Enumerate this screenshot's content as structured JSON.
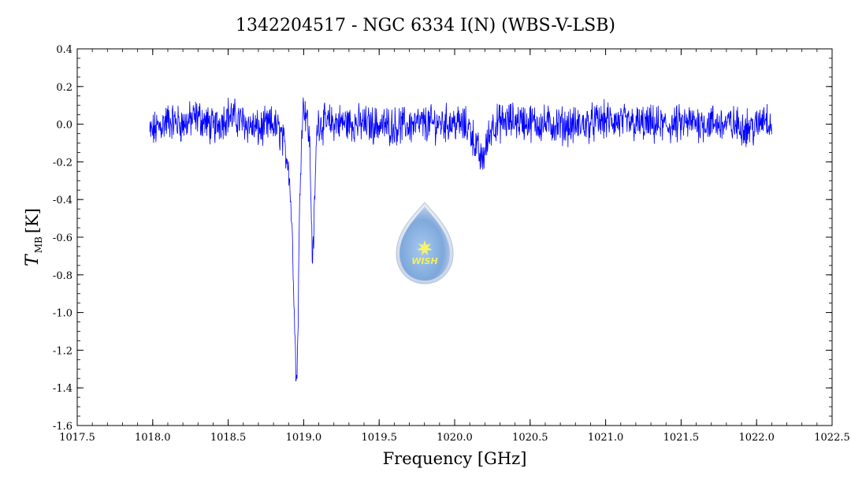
{
  "chart_data": {
    "type": "line",
    "title": "1342204517 - NGC 6334 I(N) (WBS-V-LSB)",
    "xlabel": "Frequency [GHz]",
    "ylabel": {
      "symbol": "T",
      "subscript": "MB",
      "unit": "[K]"
    },
    "xlim": [
      1017.5,
      1022.5
    ],
    "ylim": [
      -1.6,
      0.4
    ],
    "x_ticks": [
      "1017.5",
      "1018.0",
      "1018.5",
      "1019.0",
      "1019.5",
      "1020.0",
      "1020.5",
      "1021.0",
      "1021.5",
      "1022.0",
      "1022.5"
    ],
    "y_ticks": [
      "0.4",
      "0.2",
      "0.0",
      "-0.2",
      "-0.4",
      "-0.6",
      "-0.8",
      "-1.0",
      "-1.2",
      "-1.4",
      "-1.6"
    ],
    "grid": false,
    "series": [
      {
        "color": "#0000ff",
        "x": [
          1017.98,
          1018.1,
          1018.2,
          1018.3,
          1018.4,
          1018.5,
          1018.6,
          1018.7,
          1018.8,
          1018.85,
          1018.88,
          1018.9,
          1018.92,
          1018.94,
          1018.95,
          1018.96,
          1018.97,
          1018.98,
          1018.99,
          1019.0,
          1019.02,
          1019.04,
          1019.05,
          1019.06,
          1019.07,
          1019.08,
          1019.09,
          1019.1,
          1019.12,
          1019.2,
          1019.4,
          1019.6,
          1019.8,
          1020.0,
          1020.1,
          1020.18,
          1020.25,
          1020.4,
          1020.6,
          1020.8,
          1021.0,
          1021.2,
          1021.4,
          1021.6,
          1021.8,
          1022.0,
          1022.05,
          1022.1
        ],
        "y": [
          -0.05,
          0.02,
          0.0,
          0.04,
          -0.02,
          0.05,
          0.01,
          -0.03,
          0.0,
          -0.05,
          -0.15,
          -0.2,
          -0.5,
          -1.0,
          -1.4,
          -1.2,
          -0.6,
          -0.2,
          0.05,
          0.1,
          0.05,
          -0.1,
          -0.45,
          -0.75,
          -0.5,
          -0.2,
          0.0,
          0.02,
          0.0,
          0.01,
          0.0,
          -0.01,
          0.0,
          0.01,
          -0.02,
          -0.2,
          0.0,
          0.02,
          0.0,
          -0.01,
          0.02,
          0.0,
          -0.01,
          0.01,
          0.0,
          -0.02,
          0.05,
          0.0
        ]
      }
    ]
  },
  "watermark": {
    "text": "WISH"
  }
}
